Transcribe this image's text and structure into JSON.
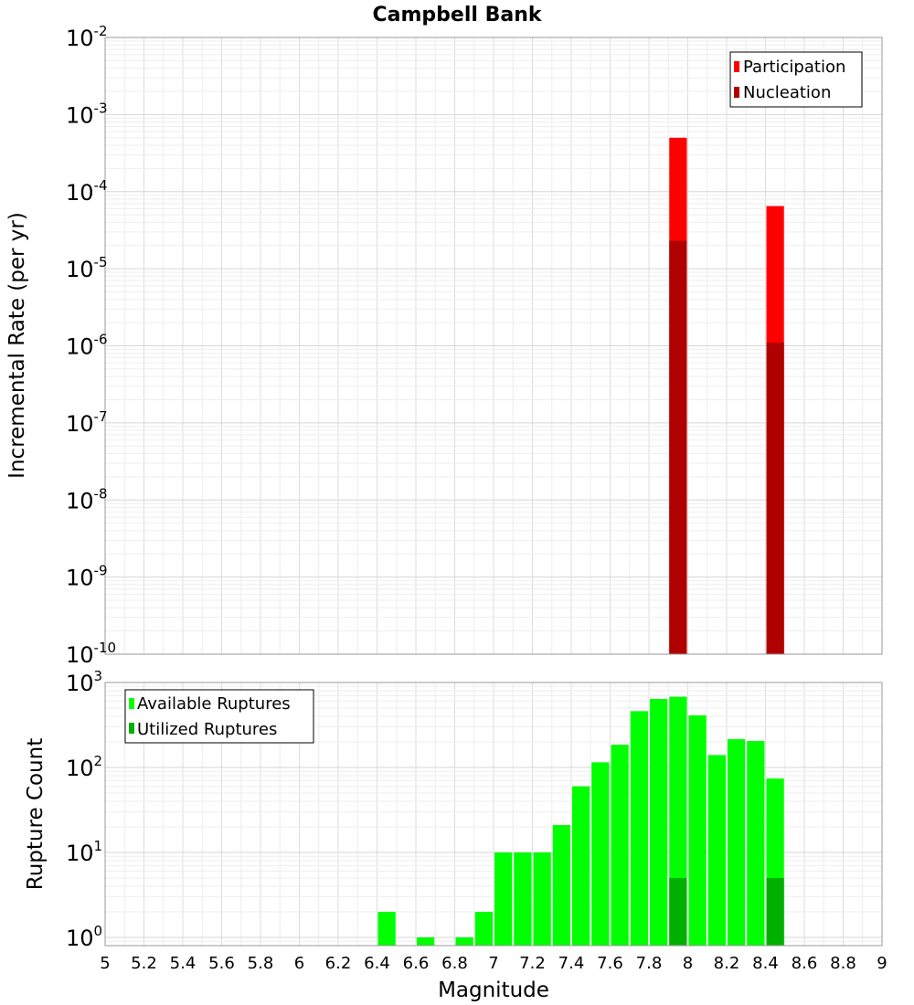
{
  "chart_data": [
    {
      "type": "bar",
      "title": "Campbell Bank",
      "xlabel": "",
      "ylabel": "Incremental Rate (per yr)",
      "yscale": "log",
      "xlim": [
        5,
        9
      ],
      "ylim": [
        1e-10,
        0.01
      ],
      "ytick_exponents": [
        -2,
        -3,
        -4,
        -5,
        -6,
        -7,
        -8,
        -9,
        -10
      ],
      "grid": true,
      "legend": "top-right",
      "series": [
        {
          "name": "Participation",
          "color": "#ff0000",
          "points": [
            {
              "x": 7.95,
              "y": 0.0005
            },
            {
              "x": 8.45,
              "y": 6.5e-05
            }
          ]
        },
        {
          "name": "Nucleation",
          "color": "#b00000",
          "points": [
            {
              "x": 7.95,
              "y": 2.3e-05
            },
            {
              "x": 8.45,
              "y": 1.1e-06
            }
          ]
        }
      ]
    },
    {
      "type": "bar",
      "title": "",
      "xlabel": "Magnitude",
      "ylabel": "Rupture Count",
      "yscale": "log",
      "xlim": [
        5,
        9
      ],
      "ylim": [
        0.8,
        1000
      ],
      "ytick_exponents": [
        3,
        2,
        1,
        0
      ],
      "xticks": [
        "5",
        "5.2",
        "5.4",
        "5.6",
        "5.8",
        "6",
        "6.2",
        "6.4",
        "6.6",
        "6.8",
        "7",
        "7.2",
        "7.4",
        "7.6",
        "7.8",
        "8",
        "8.2",
        "8.4",
        "8.6",
        "8.8",
        "9"
      ],
      "grid": true,
      "legend": "top-left",
      "series": [
        {
          "name": "Available Ruptures",
          "color": "#00ff00",
          "points": [
            {
              "x": 6.45,
              "y": 2
            },
            {
              "x": 6.65,
              "y": 1
            },
            {
              "x": 6.85,
              "y": 1
            },
            {
              "x": 6.95,
              "y": 2
            },
            {
              "x": 7.05,
              "y": 10
            },
            {
              "x": 7.15,
              "y": 10
            },
            {
              "x": 7.25,
              "y": 10
            },
            {
              "x": 7.35,
              "y": 21
            },
            {
              "x": 7.45,
              "y": 60
            },
            {
              "x": 7.55,
              "y": 115
            },
            {
              "x": 7.65,
              "y": 185
            },
            {
              "x": 7.75,
              "y": 460
            },
            {
              "x": 7.85,
              "y": 640
            },
            {
              "x": 7.95,
              "y": 680
            },
            {
              "x": 8.05,
              "y": 410
            },
            {
              "x": 8.15,
              "y": 140
            },
            {
              "x": 8.25,
              "y": 215
            },
            {
              "x": 8.35,
              "y": 205
            },
            {
              "x": 8.45,
              "y": 74
            }
          ]
        },
        {
          "name": "Utilized Ruptures",
          "color": "#00b000",
          "points": [
            {
              "x": 7.95,
              "y": 5
            },
            {
              "x": 8.45,
              "y": 5
            }
          ]
        }
      ]
    }
  ]
}
